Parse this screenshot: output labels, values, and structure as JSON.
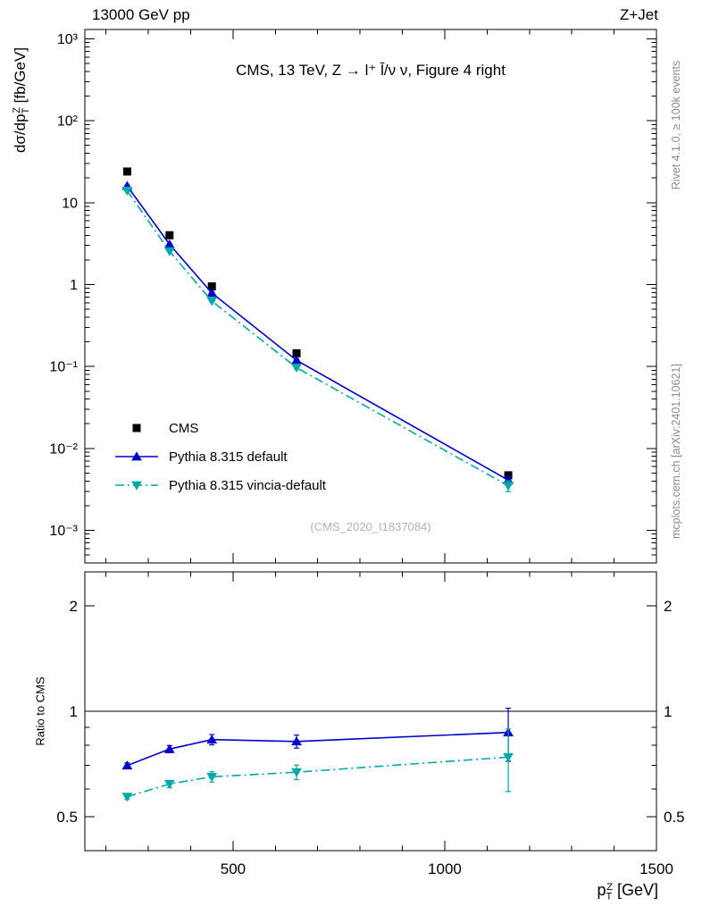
{
  "header": {
    "left": "13000 GeV pp",
    "right": "Z+Jet"
  },
  "title": "CMS, 13 TeV, Z → l⁺ l̄/ν ν, Figure 4 right",
  "watermark": "(CMS_2020_I1837084)",
  "notes": {
    "rivet": "Rivet 4.1.0, ≥ 100k events",
    "mcplots": "mcplots.cern.ch [arXiv:2401.10621]"
  },
  "axis_titles": {
    "y_main": {
      "prefix": "dσ/dp",
      "sub": "T",
      "sup": "Z",
      "suffix": " [fb/GeV]"
    },
    "y_ratio": "Ratio to CMS",
    "x": {
      "prefix": "p",
      "sub": "T",
      "sup": "Z",
      "suffix": " [GeV]"
    }
  },
  "legend": {
    "items": [
      {
        "label": "CMS",
        "marker": "square",
        "color": "#000000",
        "line": "none"
      },
      {
        "label": "Pythia 8.315 default",
        "marker": "triangle-up",
        "color": "#0000cc",
        "line": "solid"
      },
      {
        "label": "Pythia 8.315 vincia-default",
        "marker": "triangle-down",
        "color": "#00a8a8",
        "line": "dashdot"
      }
    ]
  },
  "chart_data": {
    "type": "line",
    "title": "CMS, 13 TeV, Z → l⁺ l̄/ν ν, Figure 4 right",
    "xlabel": "pT^Z [GeV]",
    "ylabel": "dσ/dpT^Z [fb/GeV]",
    "x": [
      250,
      350,
      450,
      650,
      1150
    ],
    "x_range": [
      150,
      1500
    ],
    "x_ticks": {
      "major": [
        500,
        1000,
        1500
      ],
      "minor": [
        200,
        300,
        400,
        600,
        700,
        800,
        900,
        1100,
        1200,
        1300,
        1400
      ]
    },
    "main_panel": {
      "log_y": true,
      "y_range": [
        0.0004,
        1300
      ],
      "y_ticks": [
        {
          "v": 1000,
          "label": "10³"
        },
        {
          "v": 100,
          "label": "10²"
        },
        {
          "v": 10,
          "label": "10"
        },
        {
          "v": 1,
          "label": "1"
        },
        {
          "v": 0.1,
          "label": "10⁻¹"
        },
        {
          "v": 0.01,
          "label": "10⁻²"
        },
        {
          "v": 0.001,
          "label": "10⁻³"
        }
      ],
      "series": [
        {
          "name": "CMS",
          "color": "#000000",
          "marker": "square",
          "line": "none",
          "values": [
            24,
            4.0,
            0.95,
            0.145,
            0.0047
          ]
        },
        {
          "name": "Pythia 8.315 default",
          "color": "#0000cc",
          "marker": "triangle-up",
          "line": "solid",
          "values": [
            16,
            3.1,
            0.79,
            0.119,
            0.0041
          ],
          "rel_errors": [
            0.02,
            0.02,
            0.03,
            0.04,
            0.12
          ]
        },
        {
          "name": "Pythia 8.315 vincia-default",
          "color": "#00a8a8",
          "marker": "triangle-down",
          "line": "dashdot",
          "values": [
            14,
            2.55,
            0.63,
            0.097,
            0.0035
          ],
          "rel_errors": [
            0.02,
            0.02,
            0.03,
            0.04,
            0.15
          ]
        }
      ]
    },
    "ratio_panel": {
      "log_y": true,
      "y_range": [
        0.4,
        2.5
      ],
      "reference_line": 1,
      "y_ticks": [
        {
          "v": 2,
          "label": "2"
        },
        {
          "v": 1,
          "label": "1"
        },
        {
          "v": 0.5,
          "label": "0.5"
        }
      ],
      "y_minor": [
        0.6,
        0.7,
        0.8,
        0.9
      ],
      "series": [
        {
          "name": "Pythia 8.315 default",
          "color": "#0000cc",
          "marker": "triangle-up",
          "line": "solid",
          "values": [
            0.7,
            0.78,
            0.83,
            0.82,
            0.87
          ],
          "errors": [
            0.012,
            0.018,
            0.028,
            0.035,
            0.15
          ]
        },
        {
          "name": "Pythia 8.315 vincia-default",
          "color": "#00a8a8",
          "marker": "triangle-down",
          "line": "dashdot",
          "values": [
            0.57,
            0.62,
            0.65,
            0.67,
            0.74
          ],
          "errors": [
            0.01,
            0.015,
            0.022,
            0.032,
            0.15
          ]
        }
      ]
    }
  }
}
